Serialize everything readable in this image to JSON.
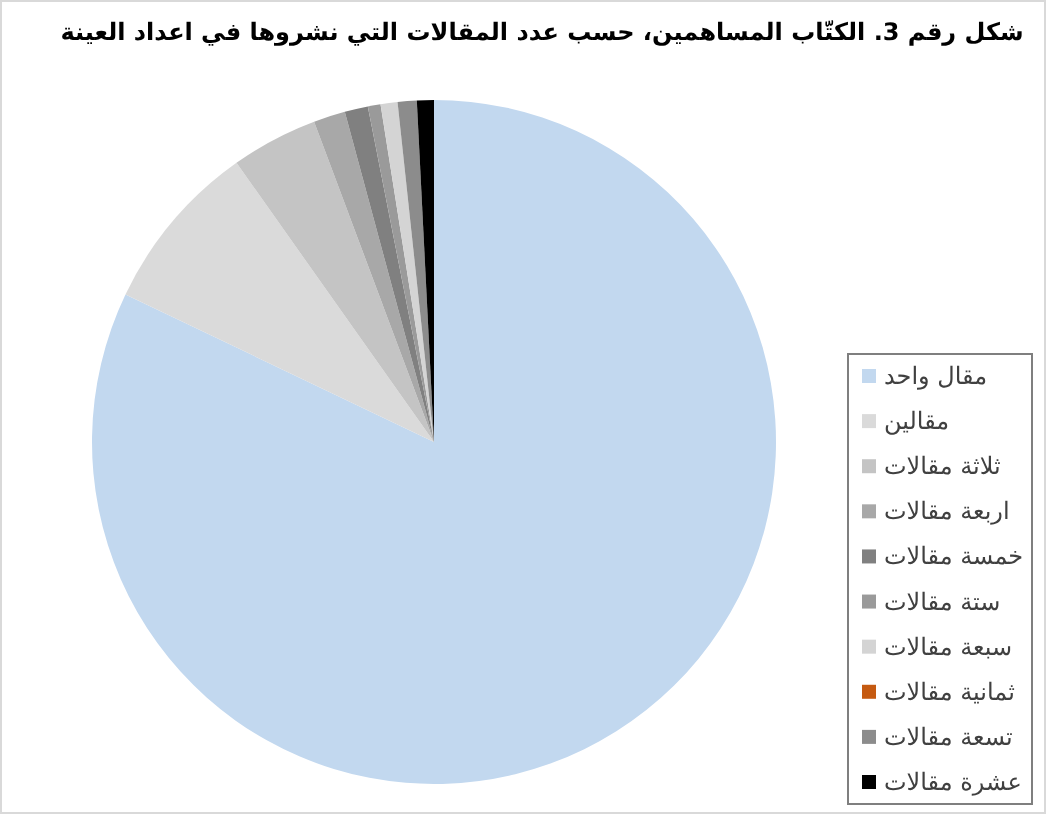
{
  "chart_data": {
    "type": "pie",
    "title": "شكل رقم 3. الكتّاب المساهمين، حسب عدد المقالات التي نشروها في اعداد العينة",
    "categories": [
      "مقال واحد",
      "مقالين",
      "ثلاثة مقالات",
      "اربعة مقالات",
      "خمسة مقالات",
      "ستة مقالات",
      "سبعة مقالات",
      "ثمانية مقالات",
      "تسعة مقالات",
      "عشرة مقالات"
    ],
    "values": [
      82.1,
      8.1,
      4.1,
      1.5,
      1.1,
      0.6,
      0.8,
      0,
      0.9,
      0.8
    ],
    "colors": [
      "#c2d8ef",
      "#dadada",
      "#c4c4c4",
      "#a8a8a8",
      "#808080",
      "#9a9a9a",
      "#d4d4d4",
      "#c55a11",
      "#8c8c8c",
      "#000000"
    ],
    "legend": "right"
  }
}
